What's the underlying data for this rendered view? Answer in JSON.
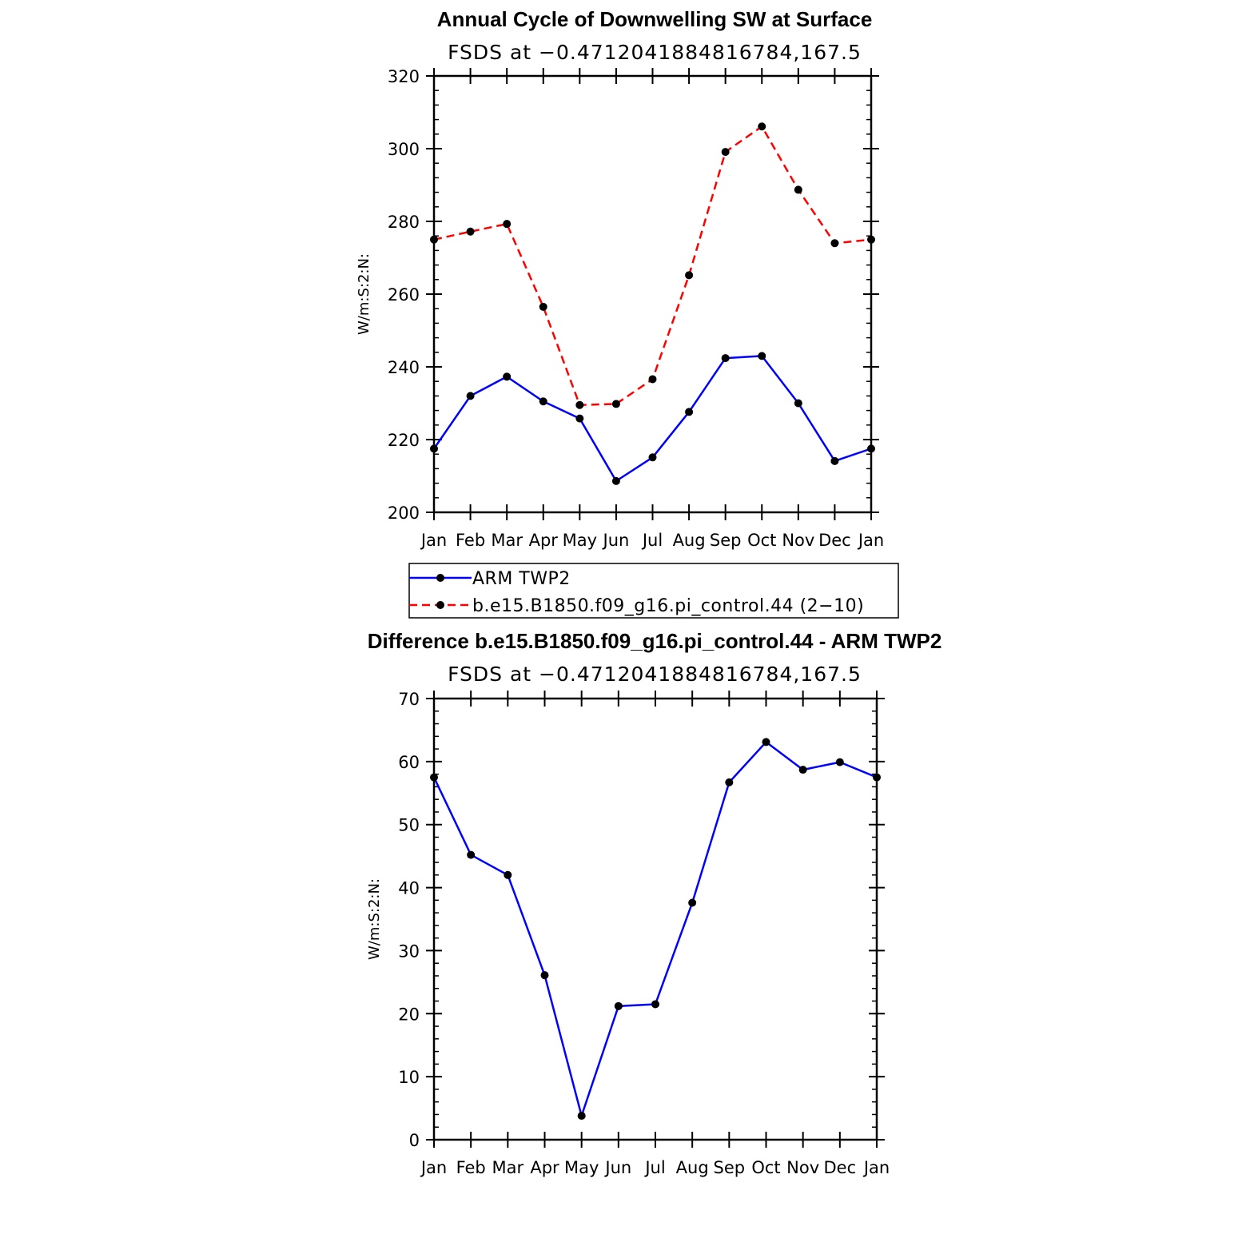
{
  "chart_data": [
    {
      "type": "line",
      "title": "Annual Cycle of Downwelling SW at Surface",
      "subtitle": "FSDS at −0.4712041884816784,167.5",
      "ylabel": "W/m:S:2:N:",
      "xlabel": "",
      "categories": [
        "Jan",
        "Feb",
        "Mar",
        "Apr",
        "May",
        "Jun",
        "Jul",
        "Aug",
        "Sep",
        "Oct",
        "Nov",
        "Dec",
        "Jan"
      ],
      "ylim": [
        200,
        320
      ],
      "yticks": [
        200,
        220,
        240,
        260,
        280,
        300,
        320
      ],
      "series": [
        {
          "name": "ARM TWP2",
          "color": "#0000ff",
          "dash": "solid",
          "values": [
            217.5,
            232.0,
            237.3,
            230.5,
            225.8,
            208.6,
            215.1,
            227.6,
            242.4,
            243.0,
            230.0,
            214.1,
            217.5
          ]
        },
        {
          "name": "b.e15.B1850.f09_g16.pi_control.44 (2−10)",
          "color": "#ff0000",
          "dash": "dashed",
          "values": [
            275.0,
            277.2,
            279.3,
            256.5,
            229.5,
            229.8,
            236.6,
            265.2,
            299.1,
            306.1,
            288.7,
            274.0,
            275.0
          ]
        }
      ],
      "legend": "below",
      "grid": false
    },
    {
      "type": "line",
      "title": "Difference b.e15.B1850.f09_g16.pi_control.44 - ARM TWP2",
      "subtitle": "FSDS at −0.4712041884816784,167.5",
      "ylabel": "W/m:S:2:N:",
      "xlabel": "",
      "categories": [
        "Jan",
        "Feb",
        "Mar",
        "Apr",
        "May",
        "Jun",
        "Jul",
        "Aug",
        "Sep",
        "Oct",
        "Nov",
        "Dec",
        "Jan"
      ],
      "ylim": [
        0,
        70
      ],
      "yticks": [
        0,
        10,
        20,
        30,
        40,
        50,
        60,
        70
      ],
      "series": [
        {
          "color": "#0000ff",
          "dash": "solid",
          "values": [
            57.5,
            45.2,
            42.0,
            26.1,
            3.8,
            21.2,
            21.5,
            37.6,
            56.7,
            63.1,
            58.7,
            59.9,
            57.5
          ]
        }
      ],
      "grid": false
    }
  ]
}
